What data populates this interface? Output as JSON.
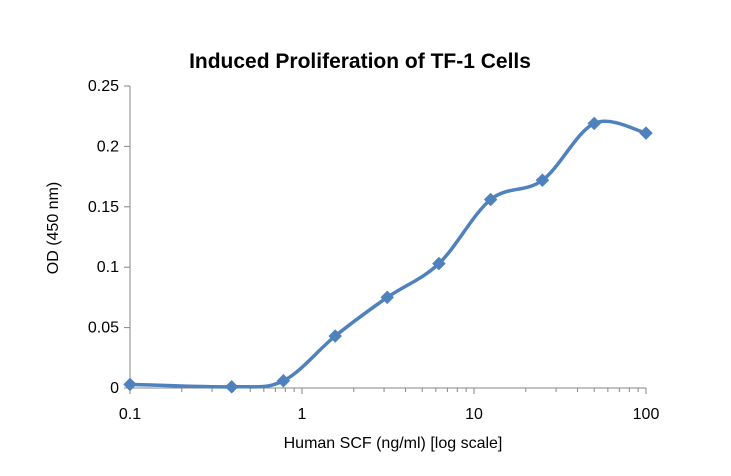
{
  "chart_data": {
    "type": "line",
    "title": "Induced Proliferation of TF-1 Cells",
    "xlabel": "Human SCF (ng/ml) [log scale]",
    "ylabel": "OD (450 nm)",
    "x_scale": "log",
    "xlim": [
      0.1,
      100
    ],
    "ylim": [
      0,
      0.25
    ],
    "x_ticks": [
      {
        "value": 0.1,
        "label": "0.1"
      },
      {
        "value": 1,
        "label": "1"
      },
      {
        "value": 10,
        "label": "10"
      },
      {
        "value": 100,
        "label": "100"
      }
    ],
    "y_ticks": [
      {
        "value": 0,
        "label": "0"
      },
      {
        "value": 0.05,
        "label": "0.05"
      },
      {
        "value": 0.1,
        "label": "0.1"
      },
      {
        "value": 0.15,
        "label": "0.15"
      },
      {
        "value": 0.2,
        "label": "0.2"
      },
      {
        "value": 0.25,
        "label": "0.25"
      }
    ],
    "grid": false,
    "legend": "none",
    "line_style": "smooth",
    "marker": "diamond",
    "color": "#4F81BD",
    "series": [
      {
        "x": [
          0.1,
          0.39,
          0.78,
          1.56,
          3.13,
          6.25,
          12.5,
          25,
          50,
          100
        ],
        "y": [
          0.003,
          0.001,
          0.006,
          0.043,
          0.075,
          0.103,
          0.156,
          0.172,
          0.219,
          0.211
        ]
      }
    ]
  }
}
